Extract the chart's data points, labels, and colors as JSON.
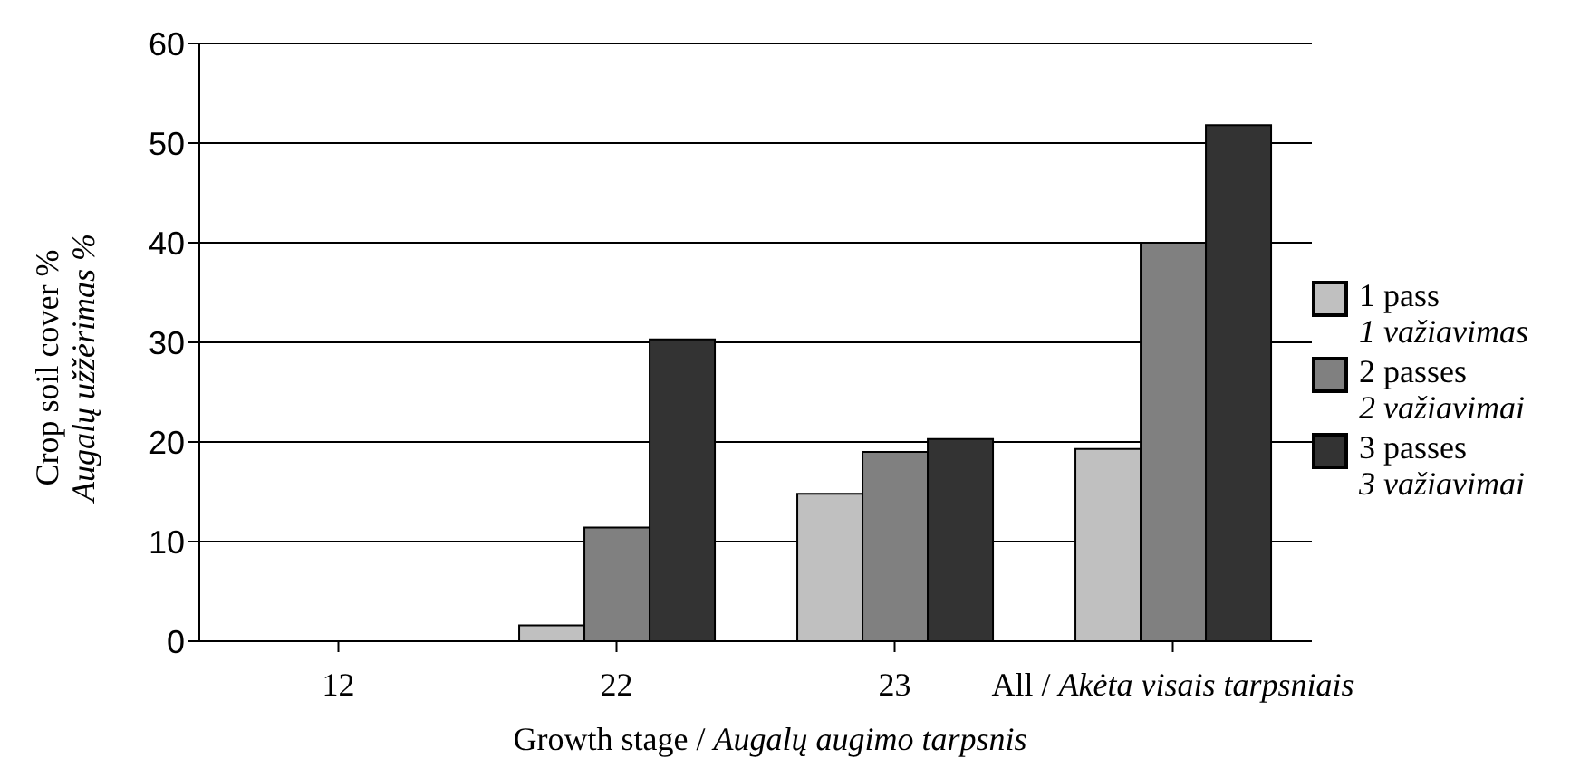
{
  "chart_data": {
    "type": "bar",
    "xlabel": "Growth stage / Augalų augimo tarpsnis",
    "ylabel": "Crop soil cover %\nAugalų užžėrimas %",
    "categories": [
      "12",
      "22",
      "23",
      "All / Akėta visais tarpsniais"
    ],
    "series": [
      {
        "name": "1 pass\n1 važiavimas",
        "color": "#c0c0c0",
        "values": [
          0,
          1.6,
          14.8,
          19.3
        ]
      },
      {
        "name": "2 passes\n2 važiavimai",
        "color": "#808080",
        "values": [
          0,
          11.4,
          19.0,
          40.0
        ]
      },
      {
        "name": "3 passes\n3 važiavimai",
        "color": "#333333",
        "values": [
          0,
          30.3,
          20.3,
          51.8
        ]
      }
    ],
    "ylim": [
      0,
      60
    ],
    "yticks": [
      0,
      10,
      20,
      30,
      40,
      50,
      60
    ],
    "grid": "y",
    "legend": "right"
  }
}
